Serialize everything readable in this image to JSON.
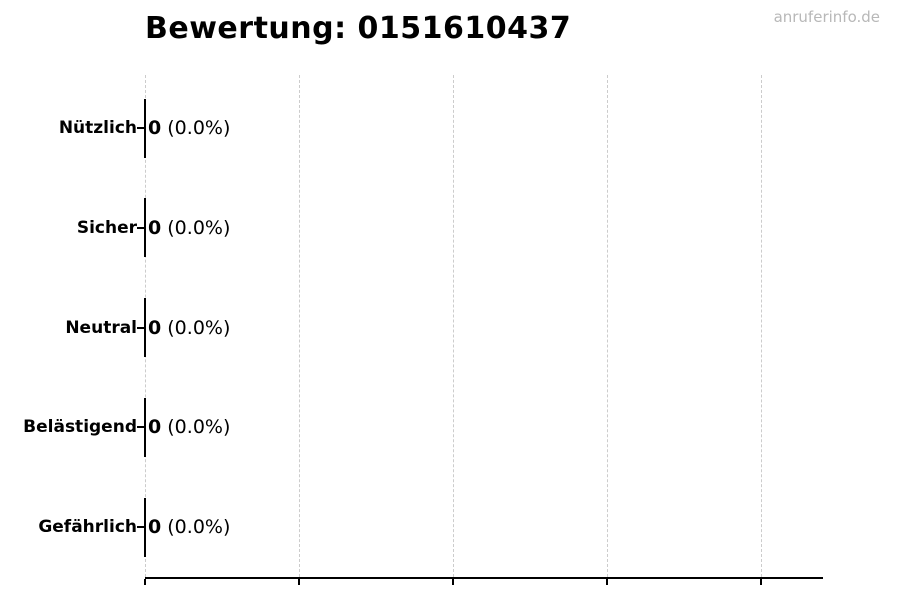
{
  "title": "Bewertung: 0151610437",
  "watermark": "anruferinfo.de",
  "chart_data": {
    "type": "bar",
    "orientation": "horizontal",
    "title": "Bewertung: 0151610437",
    "categories": [
      "Nützlich",
      "Sicher",
      "Neutral",
      "Belästigend",
      "Gefährlich"
    ],
    "values": [
      0,
      0,
      0,
      0,
      0
    ],
    "pct_labels": [
      "0.0%",
      "0.0%",
      "0.0%",
      "0.0%",
      "0.0%"
    ],
    "bar_labels": [
      "0 (0.0%)",
      "0 (0.0%)",
      "0 (0.0%)",
      "0 (0.0%)",
      "0 (0.0%)"
    ],
    "xlabel": "",
    "ylabel": "",
    "x_tick_labels": [],
    "grid": "vertical-dashed",
    "legend_position": "none"
  },
  "colors": {
    "grid": "#cccccc",
    "axis": "#000000",
    "bar_edge": "#000000",
    "text": "#000000",
    "watermark": "#b8b8b8",
    "background": "#ffffff"
  }
}
